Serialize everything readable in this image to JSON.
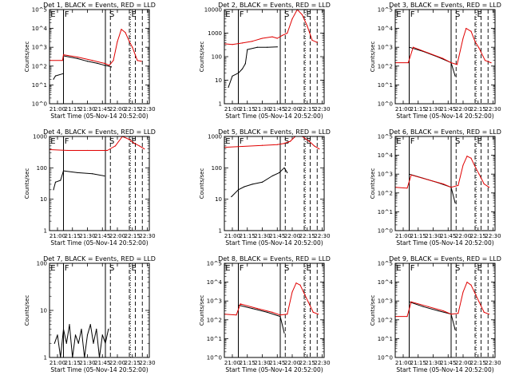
{
  "colors": {
    "black_series": "#000000",
    "red_series": "#e00000",
    "axis": "#000000"
  },
  "chart_data": [
    {
      "type": "line",
      "title": "Det 1, BLACK = Events, RED = LLD",
      "xlabel": "Start Time (05-Nov-14 20:52:00)",
      "ylabel": "Counts/sec",
      "scale": "log",
      "xlim": [
        "20:52",
        "22:32"
      ],
      "ylim": [
        1,
        100000
      ],
      "x_ticks": [
        "21:00",
        "21:15",
        "21:30",
        "21:45",
        "22:00",
        "22:15",
        "22:30"
      ],
      "y_ticks": [
        "10^0",
        "10^1",
        "10^2",
        "10^3",
        "10^4",
        "10^5"
      ],
      "segment_labels": [
        "E",
        "F",
        "S",
        "E"
      ],
      "series": [
        {
          "name": "BLACK (Events)",
          "x": [
            "20:56",
            "20:58",
            "21:06",
            "21:06",
            "21:20",
            "21:30",
            "21:40",
            "21:47",
            "21:51",
            "21:54"
          ],
          "values": [
            20,
            30,
            40,
            350,
            250,
            180,
            140,
            110,
            100,
            90
          ]
        },
        {
          "name": "RED (LLD)",
          "x": [
            "20:52",
            "21:05",
            "21:06",
            "21:20",
            "21:35",
            "21:47",
            "21:52",
            "21:56",
            "22:00",
            "22:04",
            "22:08",
            "22:12",
            "22:15",
            "22:20",
            "22:24"
          ],
          "values": [
            200,
            200,
            400,
            300,
            200,
            140,
            110,
            200,
            2000,
            9000,
            6000,
            2000,
            1000,
            200,
            180
          ]
        }
      ]
    },
    {
      "type": "line",
      "title": "Det 2, BLACK = Events, RED = LLD",
      "xlabel": "Start Time (05-Nov-14 20:52:00)",
      "ylabel": "Counts/sec",
      "scale": "log",
      "xlim": [
        "20:52",
        "22:32"
      ],
      "ylim": [
        1,
        10000
      ],
      "x_ticks": [
        "21:00",
        "21:15",
        "21:30",
        "21:45",
        "22:00",
        "22:15",
        "22:30"
      ],
      "y_ticks": [
        "1",
        "10",
        "100",
        "1000",
        "10000"
      ],
      "segment_labels": [
        "E",
        "F",
        "S",
        "E"
      ],
      "series": [
        {
          "name": "BLACK (Events)",
          "x": [
            "20:56",
            "21:00",
            "21:06",
            "21:10",
            "21:13",
            "21:15",
            "21:25",
            "21:35",
            "21:45"
          ],
          "values": [
            5,
            15,
            20,
            30,
            50,
            200,
            250,
            250,
            260
          ]
        },
        {
          "name": "RED (LLD)",
          "x": [
            "20:52",
            "21:00",
            "21:10",
            "21:20",
            "21:30",
            "21:40",
            "21:45",
            "21:50",
            "21:55",
            "22:00",
            "22:05",
            "22:10",
            "22:15",
            "22:20",
            "22:25"
          ],
          "values": [
            350,
            330,
            380,
            450,
            600,
            700,
            600,
            800,
            1000,
            4000,
            10000,
            6000,
            2000,
            500,
            400
          ]
        }
      ]
    },
    {
      "type": "line",
      "title": "Det 3, BLACK = Events, RED = LLD",
      "xlabel": "Start Time (05-Nov-14 20:52:00)",
      "ylabel": "Counts/sec",
      "scale": "log",
      "xlim": [
        "20:52",
        "22:32"
      ],
      "ylim": [
        1,
        100000
      ],
      "x_ticks": [
        "21:00",
        "21:15",
        "21:30",
        "21:45",
        "22:00",
        "22:15",
        "22:30"
      ],
      "y_ticks": [
        "10^0",
        "10^1",
        "10^2",
        "10^3",
        "10^4",
        "10^5"
      ],
      "segment_labels": [
        "E",
        "F",
        "S",
        "E"
      ],
      "series": [
        {
          "name": "BLACK (Events)",
          "x": [
            "21:06",
            "21:20",
            "21:35",
            "21:48",
            "21:52"
          ],
          "values": [
            1000,
            600,
            300,
            150,
            30
          ]
        },
        {
          "name": "RED (LLD)",
          "x": [
            "20:52",
            "21:05",
            "21:10",
            "21:25",
            "21:40",
            "21:48",
            "21:54",
            "22:00",
            "22:03",
            "22:08",
            "22:12",
            "22:16",
            "22:22",
            "22:28"
          ],
          "values": [
            150,
            150,
            1000,
            500,
            250,
            150,
            120,
            3000,
            10000,
            7000,
            2000,
            900,
            200,
            150
          ]
        }
      ]
    },
    {
      "type": "line",
      "title": "Det 4, BLACK = Events, RED = LLD",
      "xlabel": "Start Time (05-Nov-14 20:52:00)",
      "ylabel": "Counts/sec",
      "scale": "log",
      "xlim": [
        "20:52",
        "22:32"
      ],
      "ylim": [
        1,
        1000
      ],
      "x_ticks": [
        "21:00",
        "21:15",
        "21:30",
        "21:45",
        "22:00",
        "22:15",
        "22:30"
      ],
      "y_ticks": [
        "1",
        "10",
        "100",
        "1000"
      ],
      "segment_labels": [
        "E",
        "F",
        "S",
        "E"
      ],
      "series": [
        {
          "name": "BLACK (Events)",
          "x": [
            "20:56",
            "20:58",
            "21:03",
            "21:06",
            "21:20",
            "21:35",
            "21:47"
          ],
          "values": [
            20,
            35,
            40,
            80,
            70,
            65,
            55
          ]
        },
        {
          "name": "RED (LLD)",
          "x": [
            "20:52",
            "21:10",
            "21:30",
            "21:50",
            "21:58",
            "22:05",
            "22:12",
            "22:17",
            "22:22",
            "22:27"
          ],
          "values": [
            380,
            360,
            360,
            360,
            500,
            1000,
            800,
            600,
            500,
            400
          ]
        }
      ]
    },
    {
      "type": "line",
      "title": "Det 5, BLACK = Events, RED = LLD",
      "xlabel": "Start Time (05-Nov-14 20:52:00)",
      "ylabel": "Counts/sec",
      "scale": "log",
      "xlim": [
        "20:52",
        "22:32"
      ],
      "ylim": [
        1,
        1000
      ],
      "x_ticks": [
        "21:00",
        "21:15",
        "21:30",
        "21:45",
        "22:00",
        "22:15",
        "22:30"
      ],
      "y_ticks": [
        "1",
        "10",
        "100",
        "1000"
      ],
      "segment_labels": [
        "E",
        "F",
        "S",
        "E"
      ],
      "series": [
        {
          "name": "BLACK (Events)",
          "x": [
            "20:59",
            "21:06",
            "21:12",
            "21:20",
            "21:30",
            "21:40",
            "21:47",
            "21:52",
            "21:55"
          ],
          "values": [
            12,
            20,
            25,
            30,
            35,
            55,
            70,
            100,
            70
          ]
        },
        {
          "name": "RED (LLD)",
          "x": [
            "20:52",
            "21:10",
            "21:30",
            "21:45",
            "21:52",
            "21:58",
            "22:03",
            "22:10",
            "22:17",
            "22:22",
            "22:27"
          ],
          "values": [
            450,
            480,
            520,
            550,
            600,
            700,
            1000,
            1000,
            700,
            500,
            400
          ]
        }
      ]
    },
    {
      "type": "line",
      "title": "Det 6, BLACK = Events, RED = LLD",
      "xlabel": "Start Time (05-Nov-14 20:52:00)",
      "ylabel": "Counts/sec",
      "scale": "log",
      "xlim": [
        "20:52",
        "22:32"
      ],
      "ylim": [
        1,
        100000
      ],
      "x_ticks": [
        "21:00",
        "21:15",
        "21:30",
        "21:45",
        "22:00",
        "22:15",
        "22:30"
      ],
      "y_ticks": [
        "10^0",
        "10^1",
        "10^2",
        "10^3",
        "10^4",
        "10^5"
      ],
      "segment_labels": [
        "E",
        "F",
        "S",
        "E"
      ],
      "series": [
        {
          "name": "BLACK (Events)",
          "x": [
            "21:06",
            "21:20",
            "21:35",
            "21:48",
            "21:52"
          ],
          "values": [
            1000,
            600,
            350,
            200,
            30
          ]
        },
        {
          "name": "RED (LLD)",
          "x": [
            "20:52",
            "21:04",
            "21:08",
            "21:25",
            "21:40",
            "21:48",
            "21:55",
            "22:00",
            "22:04",
            "22:08",
            "22:12",
            "22:16",
            "22:21",
            "22:26"
          ],
          "values": [
            200,
            180,
            900,
            500,
            300,
            200,
            250,
            3000,
            9000,
            7000,
            2500,
            1000,
            300,
            200
          ]
        }
      ]
    },
    {
      "type": "line",
      "title": "Det 7, BLACK = Events, RED = LLD",
      "xlabel": "Start Time (05-Nov-14 20:52:00)",
      "ylabel": "Counts/sec",
      "scale": "log",
      "xlim": [
        "20:52",
        "22:32"
      ],
      "ylim": [
        1,
        100
      ],
      "x_ticks": [
        "21:00",
        "21:15",
        "21:30",
        "21:45",
        "22:00",
        "22:15",
        "22:30"
      ],
      "y_ticks": [
        "1",
        "10",
        "100"
      ],
      "segment_labels": [
        "E",
        "F",
        "S",
        "E"
      ],
      "series": [
        {
          "name": "BLACK (Events)",
          "x": [
            "20:57",
            "21:00",
            "21:03",
            "21:06",
            "21:09",
            "21:12",
            "21:15",
            "21:18",
            "21:21",
            "21:24",
            "21:27",
            "21:30",
            "21:33",
            "21:36",
            "21:39",
            "21:42",
            "21:45",
            "21:48",
            "21:51"
          ],
          "values": [
            2,
            3,
            1,
            4,
            2,
            5,
            1,
            3,
            2,
            4,
            1,
            3,
            5,
            2,
            4,
            1,
            3,
            2,
            4
          ]
        }
      ]
    },
    {
      "type": "line",
      "title": "Det 8, BLACK = Events, RED = LLD",
      "xlabel": "Start Time (05-Nov-14 20:52:00)",
      "ylabel": "Counts/sec",
      "scale": "log",
      "xlim": [
        "20:52",
        "22:32"
      ],
      "ylim": [
        1,
        100000
      ],
      "x_ticks": [
        "21:00",
        "21:15",
        "21:30",
        "21:45",
        "22:00",
        "22:15",
        "22:30"
      ],
      "y_ticks": [
        "10^0",
        "10^1",
        "10^2",
        "10^3",
        "10^4",
        "10^5"
      ],
      "segment_labels": [
        "E",
        "F",
        "S",
        "E"
      ],
      "series": [
        {
          "name": "BLACK (Events)",
          "x": [
            "21:06",
            "21:20",
            "21:35",
            "21:48",
            "21:52"
          ],
          "values": [
            600,
            400,
            250,
            150,
            20
          ]
        },
        {
          "name": "RED (LLD)",
          "x": [
            "20:52",
            "21:04",
            "21:08",
            "21:25",
            "21:40",
            "21:48",
            "21:55",
            "22:00",
            "22:04",
            "22:08",
            "22:12",
            "22:16",
            "22:21",
            "22:26"
          ],
          "values": [
            200,
            180,
            700,
            400,
            250,
            180,
            200,
            3000,
            9000,
            7000,
            2500,
            900,
            250,
            200
          ]
        }
      ]
    },
    {
      "type": "line",
      "title": "Det 9, BLACK = Events, RED = LLD",
      "xlabel": "Start Time (05-Nov-14 20:52:00)",
      "ylabel": "Counts/sec",
      "scale": "log",
      "xlim": [
        "20:52",
        "22:32"
      ],
      "ylim": [
        1,
        100000
      ],
      "x_ticks": [
        "21:00",
        "21:15",
        "21:30",
        "21:45",
        "22:00",
        "22:15",
        "22:30"
      ],
      "y_ticks": [
        "10^0",
        "10^1",
        "10^2",
        "10^3",
        "10^4",
        "10^5"
      ],
      "segment_labels": [
        "E",
        "F",
        "S",
        "E"
      ],
      "series": [
        {
          "name": "BLACK (Events)",
          "x": [
            "21:06",
            "21:20",
            "21:35",
            "21:48",
            "21:52"
          ],
          "values": [
            900,
            500,
            300,
            200,
            30
          ]
        },
        {
          "name": "RED (LLD)",
          "x": [
            "20:52",
            "21:04",
            "21:08",
            "21:25",
            "21:40",
            "21:48",
            "21:55",
            "22:00",
            "22:04",
            "22:08",
            "22:12",
            "22:16",
            "22:21",
            "22:26"
          ],
          "values": [
            150,
            150,
            900,
            500,
            300,
            200,
            220,
            3000,
            10000,
            7000,
            2500,
            900,
            250,
            200
          ]
        }
      ]
    }
  ],
  "panel_config": {
    "solid_lines": [
      "21:06",
      "21:48"
    ],
    "dashed_lines": [
      "21:53",
      "22:12",
      "22:18",
      "22:25"
    ],
    "dotted_lines": [
      "22:13"
    ]
  }
}
